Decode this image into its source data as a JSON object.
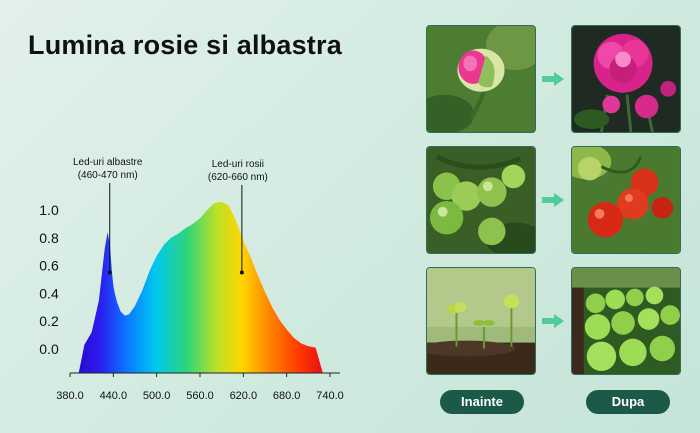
{
  "title": "Lumina rosie si albastra",
  "chart_data": {
    "type": "area",
    "title": "",
    "xlabel": "",
    "ylabel": "",
    "x_ticks": [
      "380.0",
      "440.0",
      "500.0",
      "560.0",
      "620.0",
      "680.0",
      "740.0"
    ],
    "y_ticks": [
      "0.0",
      "0.2",
      "0.4",
      "0.6",
      "0.8",
      "1.0"
    ],
    "xlim": [
      380,
      740
    ],
    "ylim": [
      0,
      1.15
    ],
    "spectrum": {
      "x": [
        392,
        400,
        410,
        420,
        428,
        432,
        435,
        438,
        440,
        442,
        445,
        450,
        456,
        462,
        470,
        480,
        490,
        500,
        510,
        520,
        530,
        540,
        550,
        560,
        570,
        580,
        590,
        600,
        610,
        620,
        630,
        640,
        650,
        660,
        670,
        680,
        690,
        700,
        710,
        720,
        730
      ],
      "y": [
        0.0,
        0.03,
        0.12,
        0.35,
        0.72,
        0.84,
        0.76,
        0.56,
        0.46,
        0.4,
        0.34,
        0.27,
        0.24,
        0.25,
        0.31,
        0.42,
        0.56,
        0.67,
        0.75,
        0.8,
        0.83,
        0.87,
        0.9,
        0.94,
        1.0,
        1.05,
        1.06,
        1.03,
        0.92,
        0.78,
        0.66,
        0.53,
        0.41,
        0.3,
        0.21,
        0.14,
        0.08,
        0.04,
        0.02,
        0.01,
        0.0
      ]
    },
    "annotations": [
      {
        "line1": "Led-uri albastre",
        "line2": "(460-470 nm)",
        "x": 435,
        "y": 0.55
      },
      {
        "line1": "Led-uri rosii",
        "line2": "(620-660 nm)",
        "x": 618,
        "y": 0.55
      }
    ]
  },
  "labels": {
    "before": "Inainte",
    "after": "Dupa"
  },
  "rows": [
    {
      "before": "peony-bud-icon",
      "after": "peony-bloom-icon"
    },
    {
      "before": "green-tomatoes-icon",
      "after": "red-tomatoes-icon"
    },
    {
      "before": "seedlings-icon",
      "after": "lettuce-rows-icon"
    }
  ],
  "colors": {
    "pill": "#1b5a49",
    "arrow": "#4fcb9d",
    "frame": "#2f6e59"
  }
}
